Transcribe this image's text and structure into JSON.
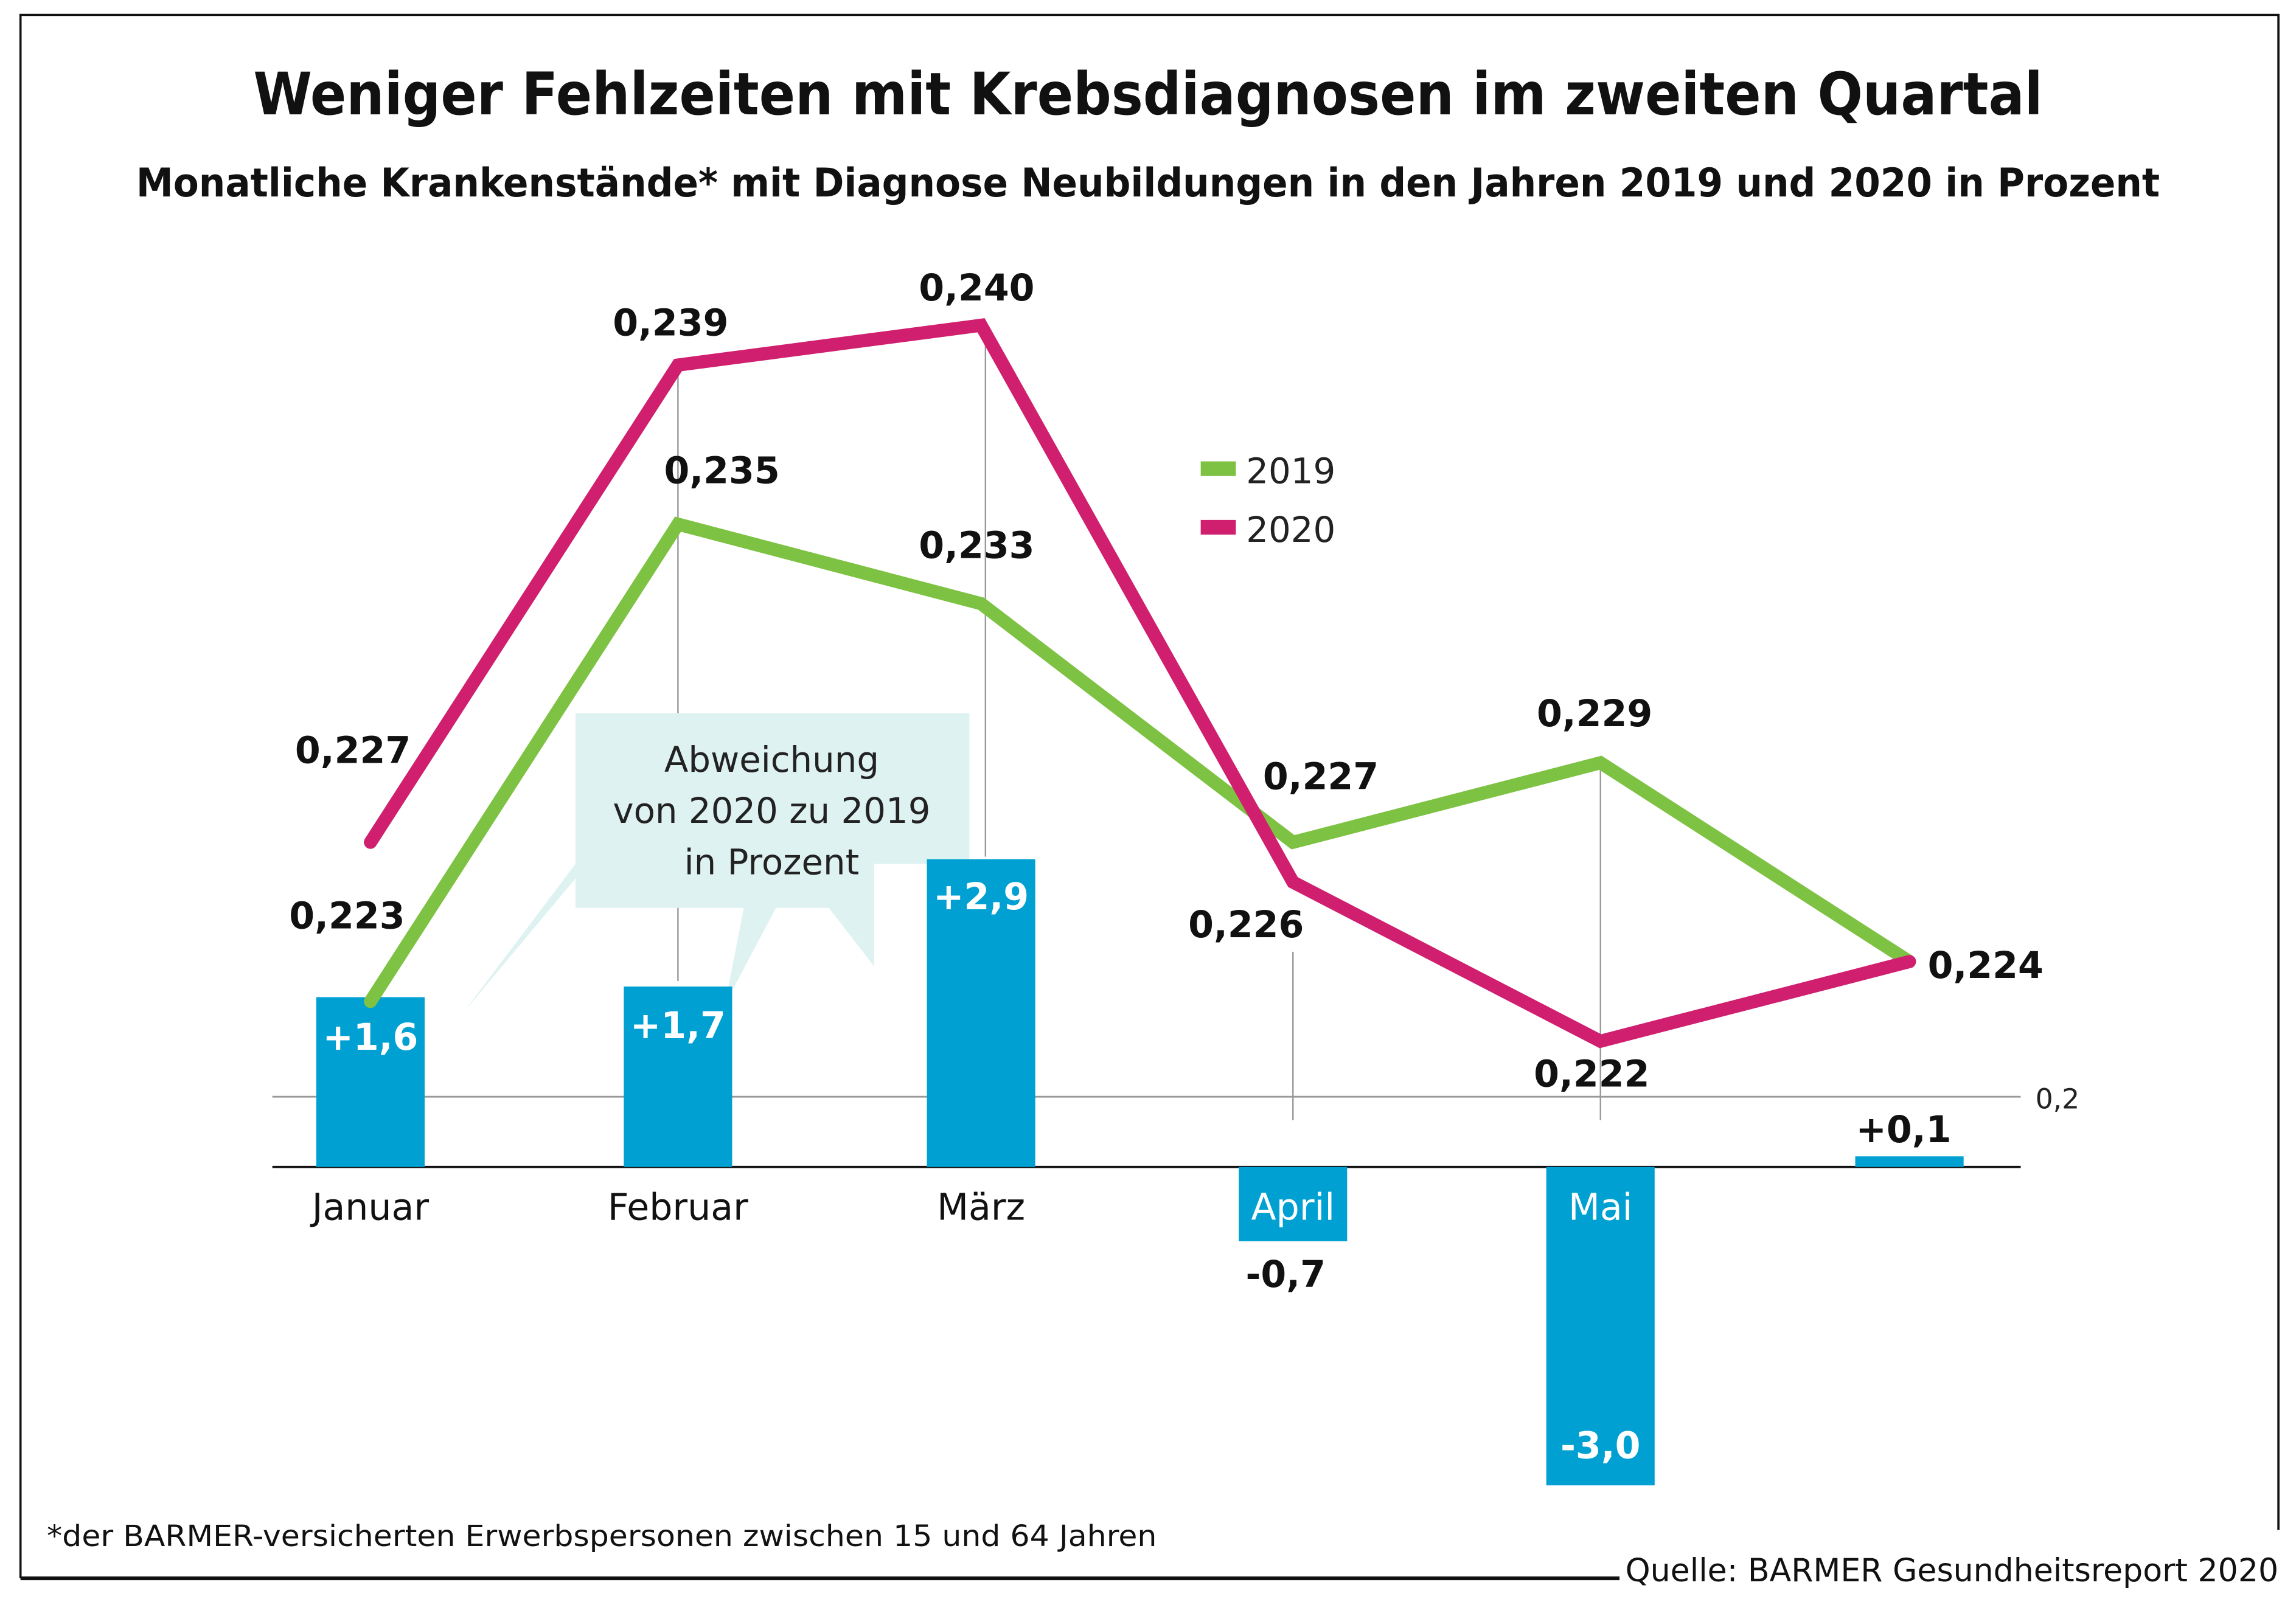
{
  "chart_data": {
    "type": "line",
    "title": "Weniger Fehlzeiten mit Krebsdiagnosen im zweiten Quartal",
    "subtitle": "Monatliche Krankenstände* mit Diagnose Neubildungen in den Jahren 2019 und 2020 in Prozent",
    "categories": [
      "Januar",
      "Februar",
      "März",
      "April",
      "Mai",
      ""
    ],
    "series": [
      {
        "name": "2019",
        "color": "#7dc242",
        "values": [
          0.223,
          0.235,
          0.233,
          0.227,
          0.229,
          0.224
        ],
        "labels": [
          "0,223",
          "0,235",
          "0,233",
          "0,227",
          "0,229",
          "0,224"
        ]
      },
      {
        "name": "2020",
        "color": "#d01f6f",
        "values": [
          0.227,
          0.239,
          0.24,
          0.226,
          0.222,
          0.224
        ],
        "labels": [
          "0,227",
          "0,239",
          "0,240",
          "0,226",
          "0,222",
          ""
        ]
      }
    ],
    "deviation": {
      "title": [
        "Abweichung",
        "von 2020 zu 2019",
        "in Prozent"
      ],
      "color": "#00a0d2",
      "values": [
        1.6,
        1.7,
        2.9,
        -0.7,
        -3.0,
        0.1
      ],
      "labels": [
        "+1,6",
        "+1,7",
        "+2,9",
        "-0,7",
        "-3,0",
        "+0,1"
      ]
    },
    "y_tick": "0,2",
    "legend_placement": "top-center"
  },
  "footnote": "*der BARMER-versicherten Erwerbspersonen zwischen 15 und 64 Jahren",
  "source": "Quelle: BARMER Gesundheitsreport 2020"
}
